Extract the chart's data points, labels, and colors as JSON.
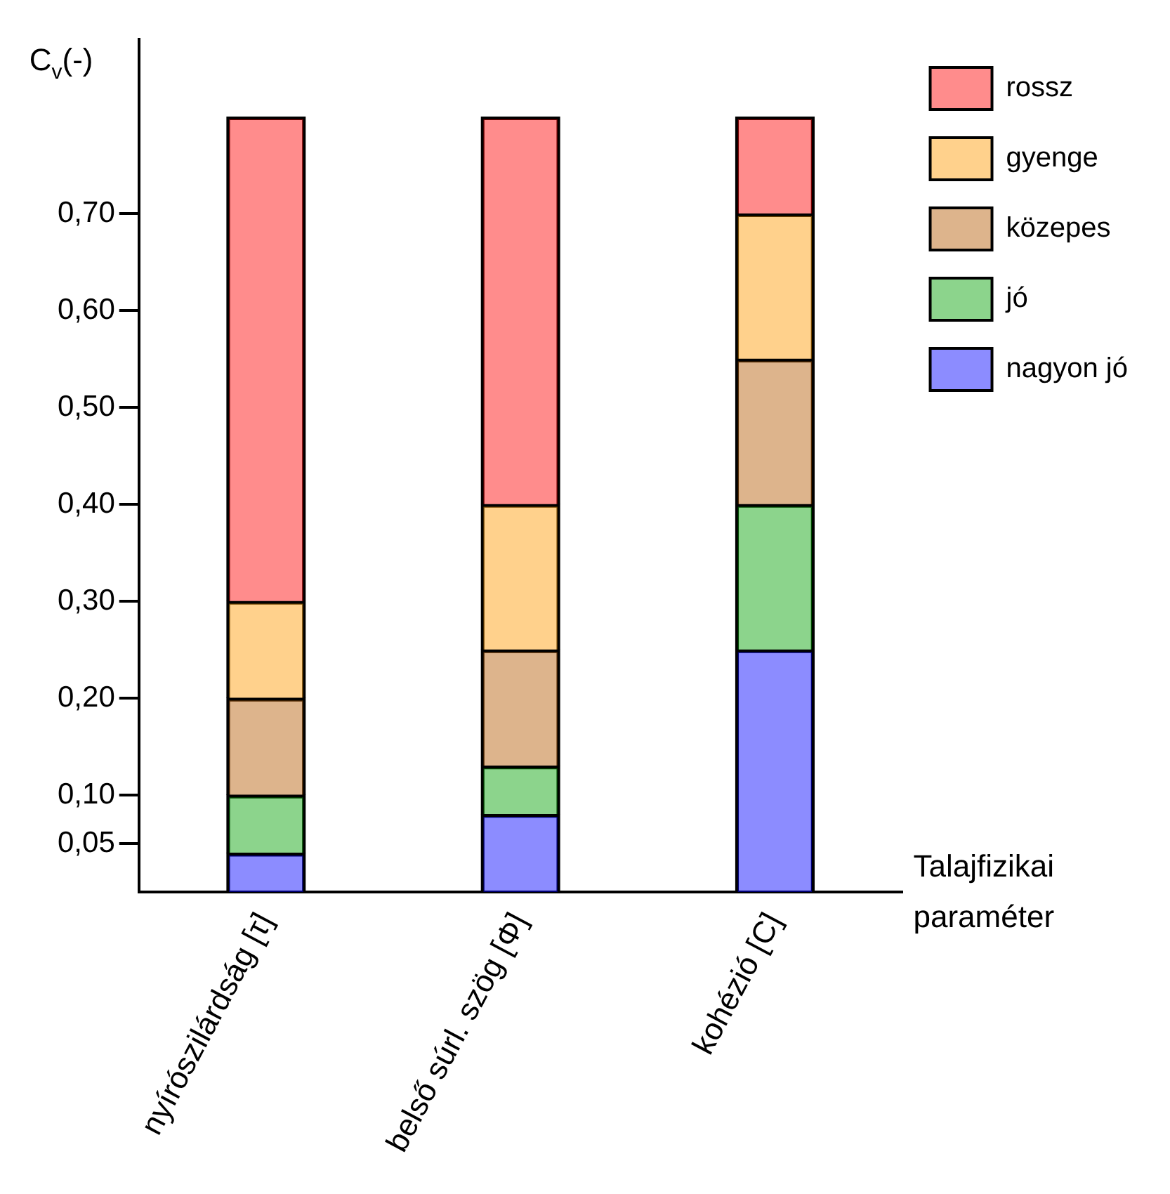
{
  "chart_data": {
    "type": "bar",
    "stacked": true,
    "ylabel": "C$_{v}$(-)",
    "xlabel": "Talajfizikai paraméter",
    "categories": [
      "nyírószilárdság [τ]",
      "belső súrl. szög [Φ]",
      "kohézió [C]"
    ],
    "series": [
      {
        "name": "nagyon jó",
        "color": "#0000ff",
        "values": [
          0.04,
          0.08,
          0.25
        ]
      },
      {
        "name": "jó",
        "color": "#00a000",
        "values": [
          0.06,
          0.05,
          0.15
        ]
      },
      {
        "name": "közepes",
        "color": "#b35900",
        "values": [
          0.1,
          0.12,
          0.15
        ]
      },
      {
        "name": "gyenge",
        "color": "#ff9900",
        "values": [
          0.1,
          0.15,
          0.15
        ]
      },
      {
        "name": "rossz",
        "color": "#ff0000",
        "values": [
          0.5,
          0.4,
          0.1
        ]
      }
    ],
    "ylim": [
      0,
      0.88
    ],
    "yticks": [
      {
        "value": 0.05,
        "label": "0,05"
      },
      {
        "value": 0.1,
        "label": "0,10"
      },
      {
        "value": 0.2,
        "label": "0,20"
      },
      {
        "value": 0.3,
        "label": "0,30"
      },
      {
        "value": 0.4,
        "label": "0,40"
      },
      {
        "value": 0.5,
        "label": "0,50"
      },
      {
        "value": 0.6,
        "label": "0,60"
      },
      {
        "value": 0.7,
        "label": "0,70"
      }
    ],
    "grid": false,
    "legend": "top right"
  }
}
